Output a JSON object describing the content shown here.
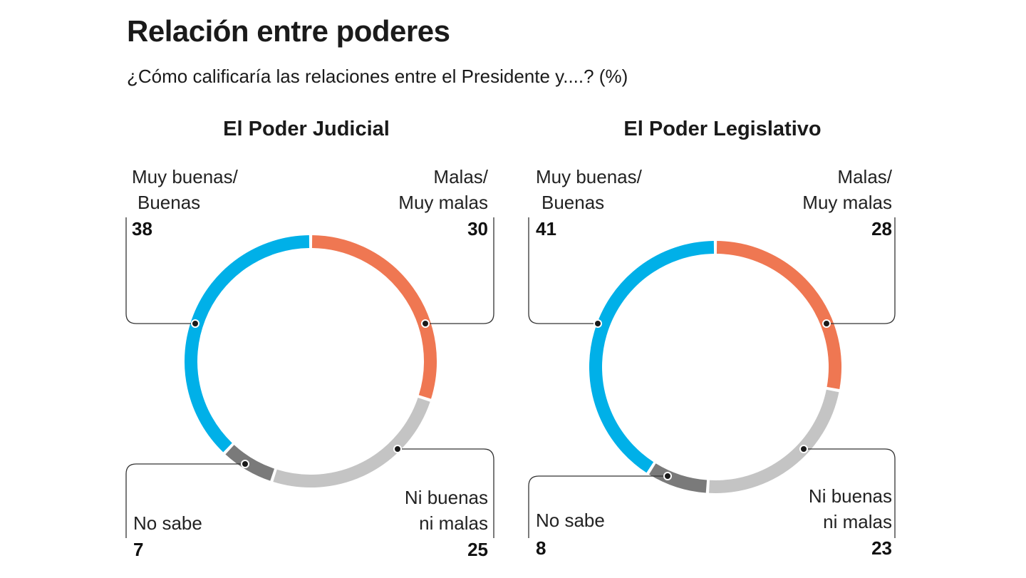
{
  "title": "Relación entre poderes",
  "subtitle": "¿Cómo calificaría las relaciones entre el Presidente y....? (%)",
  "colors": {
    "buenas": "#00b0e8",
    "malas": "#ef7752",
    "ni": "#c4c4c4",
    "nosabe": "#7a7a7a"
  },
  "chart_data": [
    {
      "type": "pie",
      "title": "El Poder Judicial",
      "slices": [
        {
          "label_1": "Malas/",
          "label_2": "Muy malas",
          "value": 30,
          "color": "#ef7752"
        },
        {
          "label_1": "Ni buenas",
          "label_2": "ni malas",
          "value": 25,
          "color": "#c4c4c4"
        },
        {
          "label_1": "No sabe",
          "label_2": "",
          "value": 7,
          "color": "#7a7a7a"
        },
        {
          "label_1": "Muy buenas/",
          "label_2": "Buenas",
          "value": 38,
          "color": "#00b0e8"
        }
      ]
    },
    {
      "type": "pie",
      "title": "El Poder Legislativo",
      "slices": [
        {
          "label_1": "Malas/",
          "label_2": "Muy malas",
          "value": 28,
          "color": "#ef7752"
        },
        {
          "label_1": "Ni buenas",
          "label_2": "ni malas",
          "value": 23,
          "color": "#c4c4c4"
        },
        {
          "label_1": "No sabe",
          "label_2": "",
          "value": 8,
          "color": "#7a7a7a"
        },
        {
          "label_1": "Muy buenas/",
          "label_2": "Buenas",
          "value": 41,
          "color": "#00b0e8"
        }
      ]
    }
  ]
}
